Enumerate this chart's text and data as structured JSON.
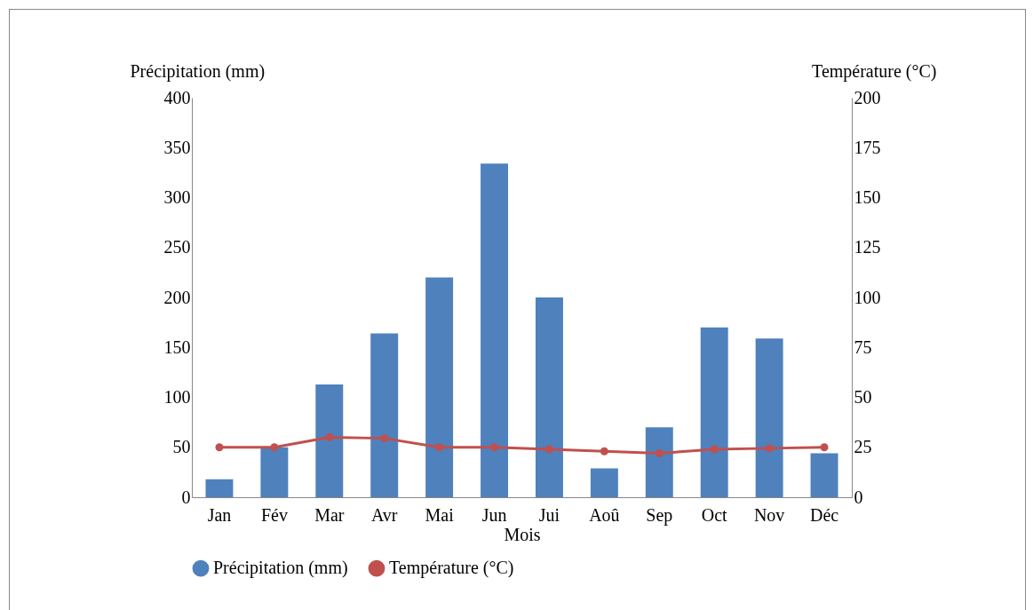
{
  "chart_data": {
    "type": "bar",
    "xlabel": "Mois",
    "ylabel": "Précipitation (mm)",
    "y2label": "Température (°C)",
    "categories": [
      "Jan",
      "Fév",
      "Mar",
      "Avr",
      "Mai",
      "Jun",
      "Jui",
      "Aoû",
      "Sep",
      "Oct",
      "Nov",
      "Déc"
    ],
    "series": [
      {
        "name": "Précipitation (mm)",
        "color": "#4f81bd",
        "values": [
          18,
          50,
          113,
          164,
          220,
          334,
          200,
          29,
          70,
          170,
          159,
          44
        ]
      },
      {
        "name": "Température (°C)",
        "type": "line",
        "axis": "y2",
        "color": "#c0504d",
        "values": [
          25,
          25,
          30,
          29.5,
          25,
          25,
          24,
          23,
          22,
          24,
          24.5,
          25
        ]
      }
    ],
    "ylim": [
      0,
      400
    ],
    "yticks": [
      0,
      50,
      100,
      150,
      200,
      250,
      300,
      350,
      400
    ],
    "y2lim": [
      0,
      200
    ],
    "y2ticks": [
      0,
      25,
      50,
      75,
      100,
      125,
      150,
      175,
      200
    ],
    "grid": false,
    "legend": "bottom",
    "marker": "circle",
    "line_style": "solid"
  }
}
